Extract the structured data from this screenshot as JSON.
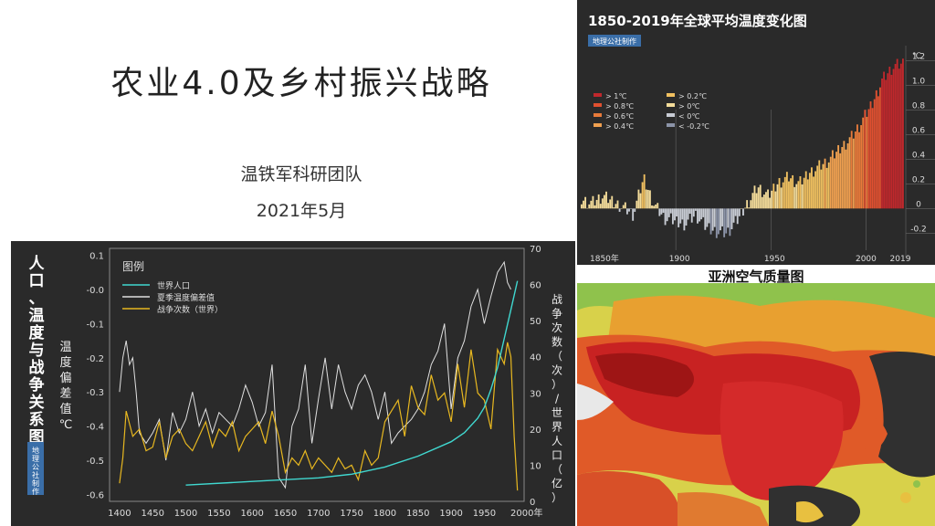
{
  "slide": {
    "title": "农业4.0及乡村振兴战略",
    "team": "温铁军科研团队",
    "date": "2021年5月"
  },
  "chartA": {
    "side_title": [
      "人",
      "口",
      "、",
      "温",
      "度",
      "与",
      "战",
      "争",
      "关",
      "系",
      "图"
    ],
    "badge": "地理公社制作",
    "legend_title": "图例",
    "legend": [
      "世界人口",
      "夏季温度偏差值",
      "战争次数（世界）"
    ],
    "ylabel_left": "温度偏差值℃",
    "ylabel_right": "战争次数（次）/世界人口（亿）",
    "chart_data": {
      "type": "line",
      "x_ticks": [
        "1400",
        "1450",
        "1500",
        "1550",
        "1600",
        "1650",
        "1700",
        "1750",
        "1800",
        "1850",
        "1900",
        "1950",
        "2000年"
      ],
      "left_ticks": [
        "0.1",
        "-0.0",
        "-0.1",
        "-0.2",
        "-0.3",
        "-0.4",
        "-0.5",
        "-0.6"
      ],
      "right_ticks": [
        "70",
        "60",
        "50",
        "40",
        "30",
        "20",
        "10",
        "0"
      ],
      "ylim_left": [
        -0.62,
        0.12
      ],
      "ylim_right": [
        0,
        70
      ],
      "xlim": [
        1385,
        2010
      ],
      "series": [
        {
          "name": "世界人口",
          "color": "#40d8d0",
          "x": [
            1500,
            1600,
            1700,
            1750,
            1800,
            1850,
            1900,
            1920,
            1940,
            1950,
            1960,
            1970,
            1980,
            1990,
            2000
          ],
          "values": [
            4.5,
            5.5,
            6.5,
            7.5,
            9.5,
            12.5,
            16.5,
            19,
            23,
            26,
            31,
            37,
            45,
            53,
            61
          ]
        },
        {
          "name": "夏季温度偏差值",
          "color": "#e0e0e0",
          "x": [
            1400,
            1405,
            1410,
            1415,
            1420,
            1425,
            1430,
            1440,
            1450,
            1460,
            1470,
            1480,
            1490,
            1500,
            1510,
            1520,
            1530,
            1540,
            1550,
            1560,
            1570,
            1580,
            1590,
            1600,
            1610,
            1620,
            1630,
            1640,
            1650,
            1660,
            1670,
            1680,
            1690,
            1700,
            1710,
            1720,
            1730,
            1740,
            1750,
            1760,
            1770,
            1780,
            1790,
            1800,
            1810,
            1820,
            1830,
            1840,
            1850,
            1860,
            1870,
            1880,
            1890,
            1900,
            1910,
            1920,
            1930,
            1940,
            1950,
            1960,
            1970,
            1980,
            1985,
            1990
          ],
          "values": [
            -0.3,
            -0.2,
            -0.15,
            -0.22,
            -0.2,
            -0.3,
            -0.42,
            -0.45,
            -0.42,
            -0.38,
            -0.5,
            -0.36,
            -0.42,
            -0.38,
            -0.3,
            -0.4,
            -0.35,
            -0.42,
            -0.36,
            -0.38,
            -0.4,
            -0.35,
            -0.28,
            -0.33,
            -0.4,
            -0.36,
            -0.22,
            -0.55,
            -0.58,
            -0.4,
            -0.35,
            -0.22,
            -0.45,
            -0.32,
            -0.2,
            -0.35,
            -0.22,
            -0.3,
            -0.35,
            -0.28,
            -0.25,
            -0.3,
            -0.38,
            -0.3,
            -0.45,
            -0.42,
            -0.4,
            -0.38,
            -0.35,
            -0.3,
            -0.22,
            -0.18,
            -0.1,
            -0.35,
            -0.2,
            -0.15,
            -0.05,
            0.0,
            -0.1,
            -0.02,
            0.05,
            0.08,
            0.02,
            0.0
          ]
        },
        {
          "name": "战争次数（世界）",
          "color": "#e8b820",
          "x": [
            1400,
            1405,
            1410,
            1420,
            1430,
            1440,
            1450,
            1460,
            1470,
            1480,
            1490,
            1500,
            1510,
            1520,
            1530,
            1540,
            1550,
            1560,
            1570,
            1580,
            1590,
            1600,
            1610,
            1620,
            1630,
            1640,
            1650,
            1660,
            1670,
            1680,
            1690,
            1700,
            1710,
            1720,
            1730,
            1740,
            1750,
            1760,
            1770,
            1780,
            1790,
            1800,
            1810,
            1820,
            1830,
            1840,
            1850,
            1860,
            1870,
            1880,
            1890,
            1900,
            1910,
            1920,
            1930,
            1940,
            1950,
            1960,
            1970,
            1980,
            1985,
            1990,
            1995,
            2000
          ],
          "values": [
            5,
            12,
            25,
            18,
            20,
            14,
            15,
            22,
            12,
            18,
            20,
            16,
            14,
            18,
            22,
            15,
            20,
            18,
            22,
            14,
            18,
            20,
            22,
            16,
            25,
            18,
            8,
            12,
            10,
            14,
            9,
            12,
            10,
            8,
            12,
            9,
            10,
            6,
            14,
            10,
            12,
            22,
            25,
            28,
            18,
            32,
            26,
            24,
            35,
            28,
            30,
            22,
            38,
            26,
            42,
            30,
            28,
            20,
            42,
            38,
            44,
            40,
            18,
            3
          ]
        }
      ]
    }
  },
  "chartB": {
    "title": "1850-2019年全球平均温度变化图",
    "badge": "地理公社制作",
    "unit": "℃",
    "legend": [
      {
        "label": "> 1℃",
        "color": "#c0282c"
      },
      {
        "label": "> 0.8℃",
        "color": "#e05030"
      },
      {
        "label": "> 0.6℃",
        "color": "#e87a3a"
      },
      {
        "label": "> 0.4℃",
        "color": "#f0a050"
      },
      {
        "label": "> 0.2℃",
        "color": "#f0c060"
      },
      {
        "label": "> 0℃",
        "color": "#f4dc9a"
      },
      {
        "label": "< 0℃",
        "color": "#c8ccd4"
      },
      {
        "label": "< -0.2℃",
        "color": "#8c94a8"
      }
    ],
    "chart_data": {
      "type": "bar",
      "x_ticks": [
        "1850年",
        "1900",
        "1950",
        "2000",
        "2019"
      ],
      "y_ticks": [
        "1.2",
        "1.0",
        "0.8",
        "0.6",
        "0.4",
        "0.2",
        "0",
        "-0.2"
      ],
      "ylim": [
        -0.25,
        1.25
      ],
      "xlim": [
        1850,
        2019
      ],
      "values_by_decade_seed": [
        0.08,
        0.05,
        0.1,
        0.06,
        0.02,
        -0.05,
        0.25,
        0.04,
        -0.08,
        -0.1,
        -0.12,
        -0.05,
        -0.15,
        -0.18,
        -0.2,
        -0.1,
        0.05,
        0.18,
        0.1,
        0.22,
        0.26,
        0.2,
        0.3,
        0.35,
        0.4,
        0.5,
        0.58,
        0.7,
        0.85,
        1.05,
        1.15,
        1.18
      ]
    }
  },
  "mapC": {
    "title": "亚洲空气质量图"
  }
}
